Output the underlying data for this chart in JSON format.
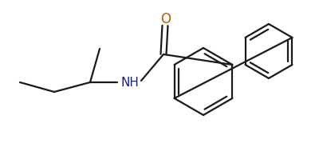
{
  "bg_color": "#ffffff",
  "line_color": "#1a1a1a",
  "O_color": "#b85c00",
  "N_color": "#1a1a99",
  "line_width": 1.6,
  "figsize": [
    4.0,
    2.09
  ],
  "dpi": 100,
  "xlim": [
    0,
    400
  ],
  "ylim": [
    0,
    209
  ]
}
